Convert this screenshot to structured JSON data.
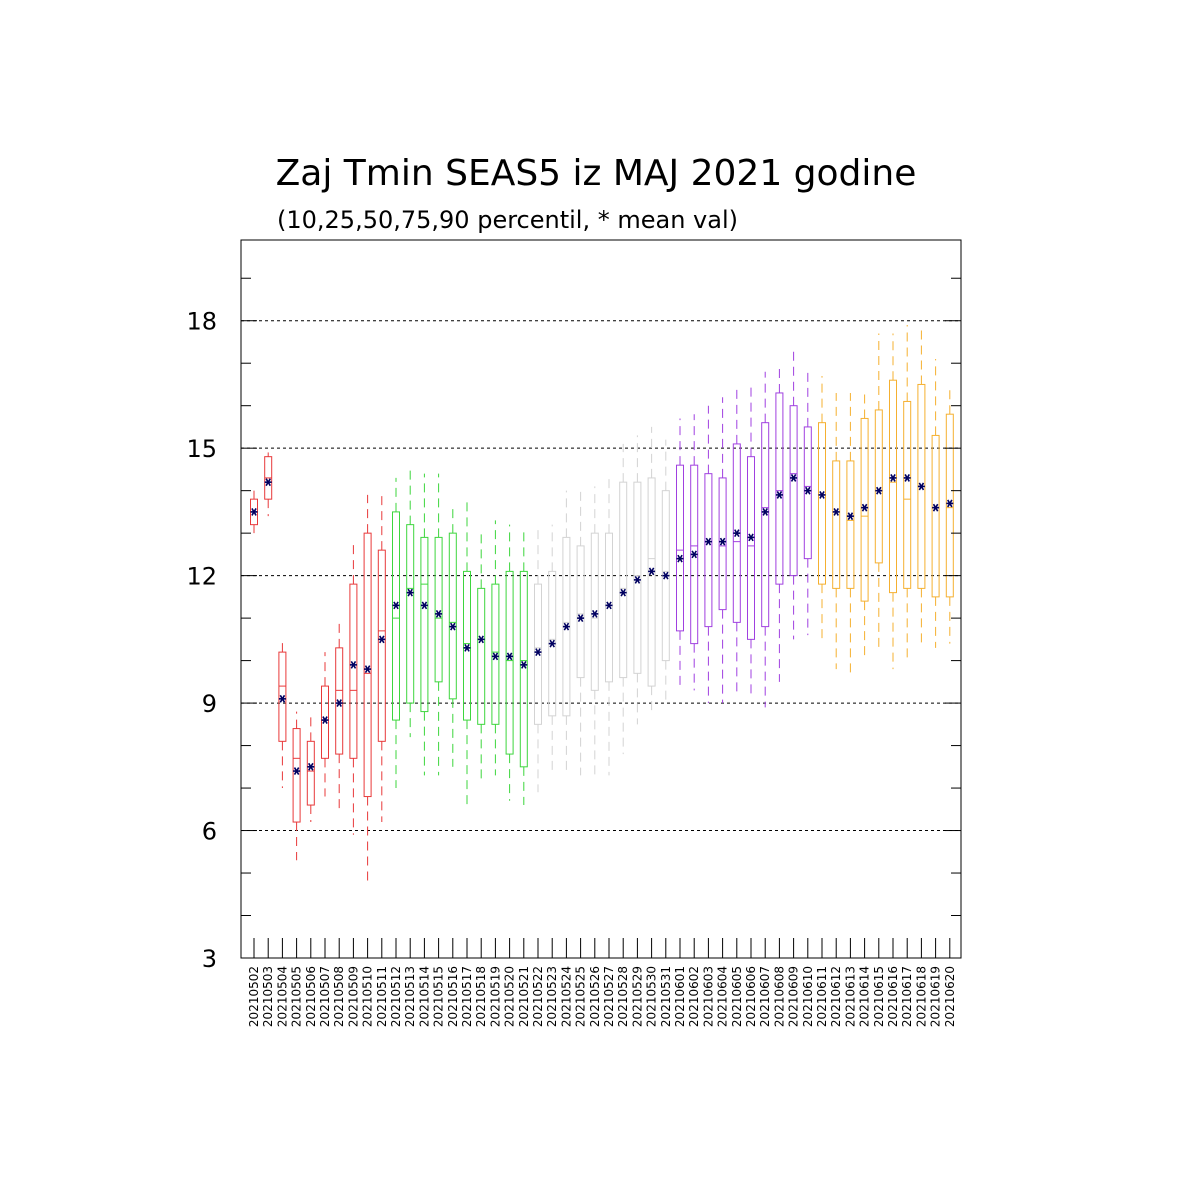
{
  "chart_data": {
    "type": "box",
    "title": "Zaj Tmin SEAS5 iz MAJ 2021 godine",
    "subtitle": "(10,25,50,75,90 percentil, * mean val)",
    "xlabel": "",
    "ylabel": "",
    "ylim": [
      3,
      19.9
    ],
    "yticks": [
      3,
      6,
      9,
      12,
      15,
      18
    ],
    "grid_y": [
      6,
      9,
      12,
      15,
      18
    ],
    "month_colors": {
      "early_may": "#e8393a",
      "mid_may": "#3dd63d",
      "late_may": "#d3d3d3",
      "early_june": "#a040e0",
      "mid_june": "#f5b030"
    },
    "mean_marker_color": "#000060",
    "categories": [
      "20210502",
      "20210503",
      "20210504",
      "20210505",
      "20210506",
      "20210507",
      "20210508",
      "20210509",
      "20210510",
      "20210511",
      "20210512",
      "20210513",
      "20210514",
      "20210515",
      "20210516",
      "20210517",
      "20210518",
      "20210519",
      "20210520",
      "20210521",
      "20210522",
      "20210523",
      "20210524",
      "20210525",
      "20210526",
      "20210527",
      "20210528",
      "20210529",
      "20210530",
      "20210531",
      "20210601",
      "20210602",
      "20210603",
      "20210604",
      "20210605",
      "20210606",
      "20210607",
      "20210608",
      "20210609",
      "20210610",
      "20210611",
      "20210612",
      "20210613",
      "20210614",
      "20210615",
      "20210616",
      "20210617",
      "20210618",
      "20210619",
      "20210620"
    ],
    "groups": [
      "early_may",
      "early_may",
      "early_may",
      "early_may",
      "early_may",
      "early_may",
      "early_may",
      "early_may",
      "early_may",
      "early_may",
      "mid_may",
      "mid_may",
      "mid_may",
      "mid_may",
      "mid_may",
      "mid_may",
      "mid_may",
      "mid_may",
      "mid_may",
      "mid_may",
      "late_may",
      "late_may",
      "late_may",
      "late_may",
      "late_may",
      "late_may",
      "late_may",
      "late_may",
      "late_may",
      "late_may",
      "early_june",
      "early_june",
      "early_june",
      "early_june",
      "early_june",
      "early_june",
      "early_june",
      "early_june",
      "early_june",
      "early_june",
      "mid_june",
      "mid_june",
      "mid_june",
      "mid_june",
      "mid_june",
      "mid_june",
      "mid_june",
      "mid_june",
      "mid_june",
      "mid_june"
    ],
    "p10": [
      13.0,
      13.4,
      7.0,
      5.3,
      6.2,
      6.8,
      6.4,
      5.9,
      4.8,
      6.2,
      7.0,
      8.2,
      7.3,
      7.3,
      7.5,
      6.6,
      7.2,
      7.3,
      6.7,
      6.6,
      6.9,
      7.3,
      7.3,
      7.3,
      7.3,
      7.3,
      7.8,
      8.5,
      8.7,
      9.0,
      9.3,
      9.3,
      9.0,
      9.0,
      9.2,
      9.2,
      8.9,
      9.5,
      10.5,
      10.6,
      10.4,
      9.8,
      9.7,
      10.0,
      10.3,
      9.8,
      10.0,
      10.3,
      10.3,
      10.4
    ],
    "p25": [
      13.2,
      13.8,
      8.1,
      6.2,
      6.6,
      7.7,
      7.8,
      7.7,
      6.8,
      8.1,
      8.6,
      9.0,
      8.8,
      9.5,
      9.1,
      8.6,
      8.5,
      8.5,
      7.8,
      7.5,
      8.5,
      8.7,
      8.7,
      9.6,
      9.3,
      9.5,
      9.6,
      9.7,
      9.4,
      10.0,
      10.7,
      10.4,
      10.8,
      11.2,
      10.9,
      10.5,
      10.8,
      11.8,
      12.0,
      12.4,
      11.8,
      11.7,
      11.7,
      11.4,
      12.3,
      11.6,
      11.7,
      11.7,
      11.5,
      11.5
    ],
    "p50": [
      13.5,
      14.3,
      9.4,
      7.7,
      7.4,
      8.6,
      9.3,
      9.3,
      9.7,
      10.7,
      11.0,
      11.7,
      11.8,
      11.0,
      10.9,
      10.4,
      10.5,
      10.2,
      10.0,
      10.0,
      10.3,
      10.5,
      10.9,
      11.1,
      11.0,
      11.3,
      11.7,
      12.0,
      12.4,
      12.1,
      12.6,
      12.7,
      12.8,
      12.7,
      12.8,
      12.7,
      13.6,
      14.0,
      14.4,
      14.1,
      13.9,
      13.5,
      13.3,
      13.4,
      14.0,
      14.2,
      13.8,
      14.1,
      13.6,
      13.6
    ],
    "p75": [
      13.8,
      14.8,
      10.2,
      8.4,
      8.1,
      9.4,
      10.3,
      11.8,
      13.0,
      12.6,
      13.5,
      13.2,
      12.9,
      12.9,
      13.0,
      12.1,
      11.7,
      11.8,
      12.1,
      12.1,
      11.8,
      12.1,
      12.9,
      12.7,
      13.0,
      13.0,
      14.2,
      14.2,
      14.3,
      14.0,
      14.6,
      14.6,
      14.4,
      14.3,
      15.1,
      14.8,
      15.6,
      16.3,
      16.0,
      15.5,
      15.6,
      14.7,
      14.7,
      15.7,
      15.9,
      16.6,
      16.1,
      16.5,
      15.3,
      15.8
    ],
    "p90": [
      14.0,
      14.9,
      10.5,
      8.8,
      8.8,
      10.2,
      11.0,
      12.8,
      13.9,
      13.9,
      14.3,
      14.5,
      14.4,
      14.4,
      13.7,
      13.8,
      13.1,
      13.3,
      13.2,
      13.1,
      13.1,
      13.2,
      14.0,
      14.1,
      14.1,
      14.4,
      15.1,
      15.3,
      15.5,
      15.2,
      15.7,
      15.8,
      16.0,
      16.2,
      16.5,
      16.5,
      16.8,
      16.9,
      17.3,
      16.8,
      16.7,
      16.3,
      16.3,
      16.4,
      17.7,
      17.7,
      17.9,
      17.8,
      17.1,
      16.4
    ],
    "mean": [
      13.5,
      14.2,
      9.1,
      7.4,
      7.5,
      8.6,
      9.0,
      9.9,
      9.8,
      10.5,
      11.3,
      11.6,
      11.3,
      11.1,
      10.8,
      10.3,
      10.5,
      10.1,
      10.1,
      9.9,
      10.2,
      10.4,
      10.8,
      11.0,
      11.1,
      11.3,
      11.6,
      11.9,
      12.1,
      12.0,
      12.4,
      12.5,
      12.8,
      12.8,
      13.0,
      12.9,
      13.5,
      13.9,
      14.3,
      14.0,
      13.9,
      13.5,
      13.4,
      13.6,
      14.0,
      14.3,
      14.3,
      14.1,
      13.6,
      13.7
    ]
  }
}
